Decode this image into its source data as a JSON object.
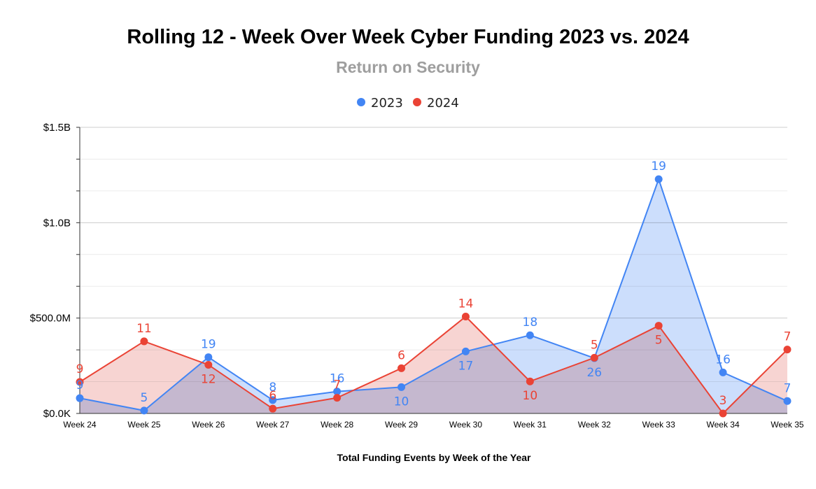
{
  "chart_data": {
    "type": "area",
    "title": "Rolling 12 - Week Over Week Cyber Funding 2023 vs. 2024",
    "subtitle": "Return on Security",
    "xlabel": "Total Funding Events by Week of the Year",
    "ylabel": "",
    "categories": [
      "Week 24",
      "Week 25",
      "Week 26",
      "Week 27",
      "Week 28",
      "Week 29",
      "Week 30",
      "Week 31",
      "Week 32",
      "Week 33",
      "Week 34",
      "Week 35"
    ],
    "yticks": [
      {
        "value": 0,
        "label": "$0.0K"
      },
      {
        "value": 500000000,
        "label": "$500.0M"
      },
      {
        "value": 1000000000,
        "label": "$1.0B"
      },
      {
        "value": 1500000000,
        "label": "$1.5B"
      }
    ],
    "ylim": [
      0,
      1500000000
    ],
    "grid": true,
    "legend_position": "top-center",
    "series": [
      {
        "name": "2023",
        "color": "#4285f4",
        "fill": "#c6dafc",
        "values": [
          80000000,
          15000000,
          295000000,
          70000000,
          115000000,
          138000000,
          325000000,
          410000000,
          290000000,
          1228000000,
          215000000,
          65000000
        ],
        "labels": [
          "9",
          "5",
          "19",
          "8",
          "16",
          "10",
          "17",
          "18",
          "26",
          "19",
          "16",
          "7"
        ]
      },
      {
        "name": "2024",
        "color": "#ea4335",
        "fill": "#f4c3c0",
        "values": [
          165000000,
          378000000,
          255000000,
          25000000,
          82000000,
          237000000,
          508000000,
          168000000,
          292000000,
          460000000,
          0,
          335000000
        ],
        "labels": [
          "9",
          "11",
          "12",
          "6",
          "7",
          "6",
          "14",
          "10",
          "5",
          "5",
          "3",
          "7"
        ]
      }
    ]
  }
}
